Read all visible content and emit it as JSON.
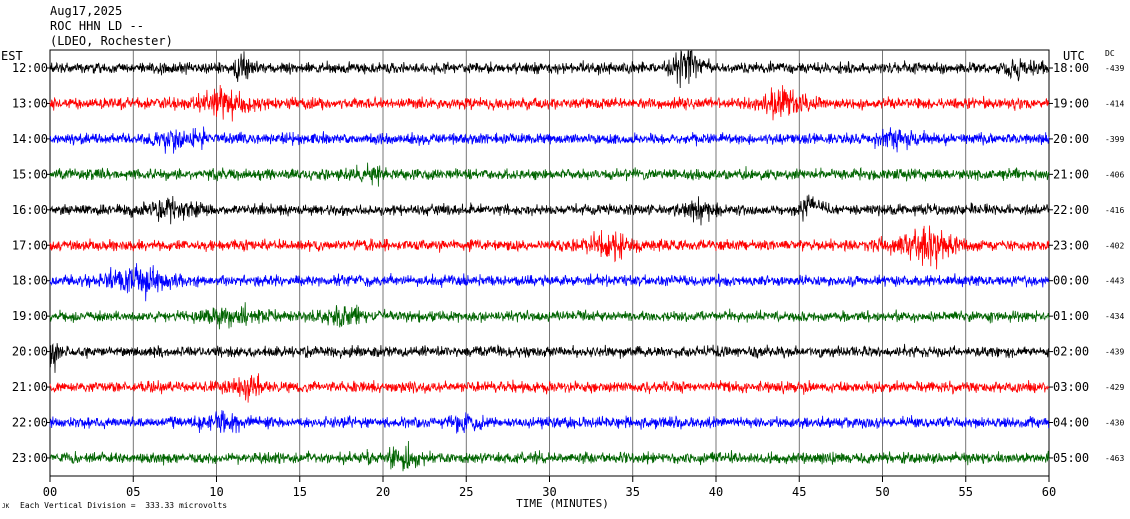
{
  "header": {
    "date": "Aug17,2025",
    "station": "ROC HHN LD --",
    "network": "(LDEO, Rochester)"
  },
  "left_tz": "EST",
  "right_tz": "UTC",
  "dc_label": "DC",
  "footer": {
    "scale_note": "Each Vertical Division =  333.33 microvolts",
    "mark": "JK"
  },
  "chart_data": {
    "type": "line",
    "title": "",
    "xlabel": "TIME (MINUTES)",
    "ylabel": "",
    "xlim": [
      0,
      60
    ],
    "x_ticks": [
      "00",
      "05",
      "10",
      "15",
      "20",
      "25",
      "30",
      "35",
      "40",
      "45",
      "50",
      "55",
      "60"
    ],
    "grid": "vertical lines every 5 minutes",
    "colors_cycle": [
      "#000000",
      "#ff0000",
      "#0000ff",
      "#006400"
    ],
    "rows": [
      {
        "est": "12:00",
        "utc": "18:00",
        "dc": "-439",
        "color": "#000000",
        "events": [
          {
            "t": 11.6,
            "w": 0.5,
            "a": 2.4
          },
          {
            "t": 38.2,
            "w": 0.8,
            "a": 3.0,
            "drift": true
          },
          {
            "t": 58.5,
            "w": 1.0,
            "a": 1.2
          }
        ]
      },
      {
        "est": "13:00",
        "utc": "19:00",
        "dc": "-414",
        "color": "#ff0000",
        "events": [
          {
            "t": 10.5,
            "w": 1.6,
            "a": 2.0
          },
          {
            "t": 44.0,
            "w": 1.4,
            "a": 2.0
          }
        ]
      },
      {
        "est": "14:00",
        "utc": "20:00",
        "dc": "-399",
        "color": "#0000ff",
        "events": [
          {
            "t": 8.0,
            "w": 1.5,
            "a": 1.5
          },
          {
            "t": 51.0,
            "w": 1.2,
            "a": 1.5
          }
        ]
      },
      {
        "est": "15:00",
        "utc": "21:00",
        "dc": "-406",
        "color": "#006400",
        "events": [
          {
            "t": 19.0,
            "w": 1.0,
            "a": 1.2
          }
        ]
      },
      {
        "est": "16:00",
        "utc": "22:00",
        "dc": "-416",
        "color": "#000000",
        "events": [
          {
            "t": 7.2,
            "w": 1.4,
            "a": 1.6
          },
          {
            "t": 39.0,
            "w": 1.0,
            "a": 1.4
          },
          {
            "t": 45.3,
            "w": 0.6,
            "a": 1.8,
            "drift": true
          }
        ]
      },
      {
        "est": "17:00",
        "utc": "23:00",
        "dc": "-402",
        "color": "#ff0000",
        "events": [
          {
            "t": 33.5,
            "w": 1.4,
            "a": 1.8
          },
          {
            "t": 52.5,
            "w": 2.0,
            "a": 2.5
          }
        ]
      },
      {
        "est": "18:00",
        "utc": "00:00",
        "dc": "-443",
        "color": "#0000ff",
        "events": [
          {
            "t": 5.0,
            "w": 1.8,
            "a": 2.0
          }
        ]
      },
      {
        "est": "19:00",
        "utc": "01:00",
        "dc": "-434",
        "color": "#006400",
        "events": [
          {
            "t": 11.0,
            "w": 1.5,
            "a": 1.4
          },
          {
            "t": 17.5,
            "w": 1.4,
            "a": 1.2
          }
        ]
      },
      {
        "est": "20:00",
        "utc": "02:00",
        "dc": "-439",
        "color": "#000000",
        "events": [
          {
            "t": 0.2,
            "w": 0.4,
            "a": 2.2
          }
        ]
      },
      {
        "est": "21:00",
        "utc": "03:00",
        "dc": "-429",
        "color": "#ff0000",
        "events": [
          {
            "t": 11.8,
            "w": 1.0,
            "a": 1.3
          }
        ]
      },
      {
        "est": "22:00",
        "utc": "04:00",
        "dc": "-430",
        "color": "#0000ff",
        "events": [
          {
            "t": 10.3,
            "w": 1.2,
            "a": 1.4
          },
          {
            "t": 25.0,
            "w": 0.8,
            "a": 1.3
          }
        ]
      },
      {
        "est": "23:00",
        "utc": "05:00",
        "dc": "-463",
        "color": "#006400",
        "events": [
          {
            "t": 21.0,
            "w": 1.2,
            "a": 1.8
          }
        ]
      }
    ]
  }
}
